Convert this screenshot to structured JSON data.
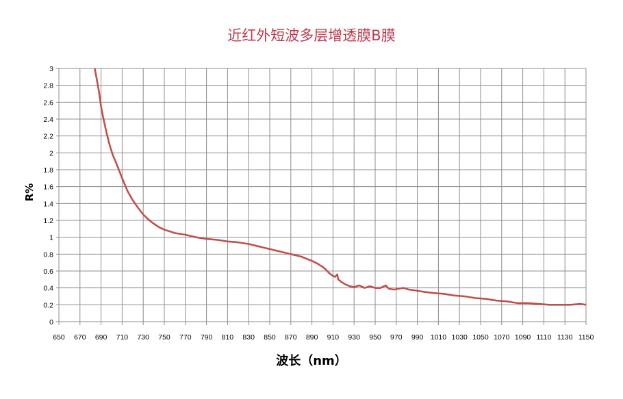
{
  "chart_data": {
    "type": "line",
    "title": "近红外短波多层增透膜B膜",
    "xlabel": "波长（nm）",
    "ylabel": "R%",
    "xlim": [
      650,
      1150
    ],
    "ylim": [
      0,
      3
    ],
    "xticks": [
      650,
      670,
      690,
      710,
      730,
      750,
      770,
      790,
      810,
      830,
      850,
      870,
      890,
      910,
      930,
      950,
      970,
      990,
      1010,
      1030,
      1050,
      1070,
      1090,
      1110,
      1130,
      1150
    ],
    "yticks": [
      "0",
      "0.2",
      "0.4",
      "0.6",
      "0.8",
      "1",
      "1.2",
      "1.4",
      "1.6",
      "1.8",
      "2",
      "2.2",
      "2.4",
      "2.6",
      "2.8",
      "3"
    ],
    "grid": true,
    "legend": "none",
    "series": [
      {
        "color": "#c0504d",
        "points": [
          [
            684,
            3.0
          ],
          [
            686,
            2.87
          ],
          [
            688,
            2.73
          ],
          [
            690,
            2.55
          ],
          [
            692,
            2.42
          ],
          [
            695,
            2.25
          ],
          [
            698,
            2.1
          ],
          [
            701,
            1.98
          ],
          [
            705,
            1.86
          ],
          [
            710,
            1.7
          ],
          [
            715,
            1.55
          ],
          [
            720,
            1.44
          ],
          [
            725,
            1.35
          ],
          [
            730,
            1.27
          ],
          [
            735,
            1.21
          ],
          [
            740,
            1.16
          ],
          [
            745,
            1.12
          ],
          [
            750,
            1.09
          ],
          [
            755,
            1.07
          ],
          [
            760,
            1.05
          ],
          [
            770,
            1.03
          ],
          [
            780,
            1.0
          ],
          [
            790,
            0.98
          ],
          [
            800,
            0.97
          ],
          [
            810,
            0.95
          ],
          [
            820,
            0.94
          ],
          [
            830,
            0.92
          ],
          [
            840,
            0.89
          ],
          [
            850,
            0.86
          ],
          [
            860,
            0.83
          ],
          [
            870,
            0.8
          ],
          [
            880,
            0.77
          ],
          [
            890,
            0.72
          ],
          [
            895,
            0.69
          ],
          [
            900,
            0.65
          ],
          [
            903,
            0.62
          ],
          [
            906,
            0.58
          ],
          [
            909,
            0.55
          ],
          [
            912,
            0.53
          ],
          [
            914,
            0.56
          ],
          [
            915,
            0.5
          ],
          [
            918,
            0.47
          ],
          [
            922,
            0.44
          ],
          [
            926,
            0.42
          ],
          [
            930,
            0.41
          ],
          [
            935,
            0.43
          ],
          [
            940,
            0.4
          ],
          [
            945,
            0.42
          ],
          [
            950,
            0.4
          ],
          [
            955,
            0.4
          ],
          [
            960,
            0.43
          ],
          [
            963,
            0.39
          ],
          [
            968,
            0.38
          ],
          [
            972,
            0.39
          ],
          [
            977,
            0.4
          ],
          [
            982,
            0.38
          ],
          [
            988,
            0.37
          ],
          [
            993,
            0.36
          ],
          [
            998,
            0.35
          ],
          [
            1005,
            0.34
          ],
          [
            1015,
            0.33
          ],
          [
            1025,
            0.31
          ],
          [
            1035,
            0.3
          ],
          [
            1045,
            0.28
          ],
          [
            1055,
            0.27
          ],
          [
            1065,
            0.25
          ],
          [
            1075,
            0.24
          ],
          [
            1085,
            0.22
          ],
          [
            1095,
            0.22
          ],
          [
            1105,
            0.21
          ],
          [
            1115,
            0.2
          ],
          [
            1125,
            0.2
          ],
          [
            1135,
            0.2
          ],
          [
            1145,
            0.21
          ],
          [
            1150,
            0.2
          ]
        ]
      }
    ]
  }
}
